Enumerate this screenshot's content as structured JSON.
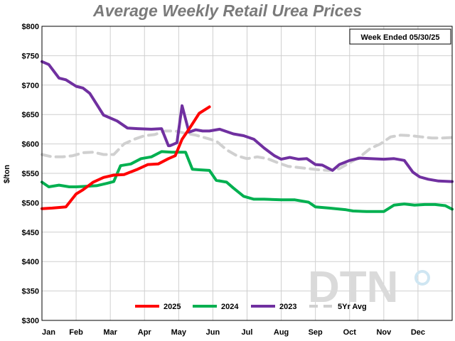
{
  "chart_data": {
    "type": "line",
    "title": "Average Weekly Retail Urea Prices",
    "annotation": "Week Ended 05/30/25",
    "ylabel": "$/ton",
    "ylim": [
      300,
      800
    ],
    "yticks": [
      300,
      350,
      400,
      450,
      500,
      550,
      600,
      650,
      700,
      750,
      800
    ],
    "ytick_labels": [
      "$300",
      "$350",
      "$400",
      "$450",
      "$500",
      "$550",
      "$600",
      "$650",
      "$700",
      "$750",
      "$800"
    ],
    "xlim": [
      0,
      12
    ],
    "months": [
      "Jan",
      "Feb",
      "Mar",
      "Apr",
      "May",
      "Jun",
      "Jul",
      "Aug",
      "Sep",
      "Oct",
      "Nov",
      "Dec"
    ],
    "grid": true,
    "legend_position": "bottom",
    "watermark": "DTN",
    "series": [
      {
        "name": "2023",
        "color": "#7030a0",
        "dash": false,
        "x": [
          0,
          0.2,
          0.5,
          0.7,
          1.0,
          1.2,
          1.4,
          1.8,
          2.2,
          2.5,
          2.8,
          3.2,
          3.5,
          3.7,
          3.75,
          3.95,
          4.1,
          4.3,
          4.5,
          4.7,
          4.9,
          5.2,
          5.6,
          5.9,
          6.2,
          6.5,
          6.8,
          7.0,
          7.25,
          7.5,
          7.75,
          8.0,
          8.2,
          8.5,
          8.7,
          9.0,
          9.3,
          9.6,
          10.0,
          10.3,
          10.6,
          10.85,
          11.05,
          11.3,
          11.6,
          12.0
        ],
        "y": [
          740,
          735,
          712,
          709,
          698,
          695,
          686,
          649,
          639,
          627,
          626,
          625,
          626,
          597,
          597,
          602,
          665,
          620,
          624,
          622,
          622,
          625,
          617,
          614,
          608,
          593,
          580,
          574,
          577,
          574,
          575,
          565,
          564,
          555,
          565,
          572,
          576,
          575,
          574,
          575,
          572,
          552,
          544,
          540,
          537,
          536
        ]
      },
      {
        "name": "2024",
        "color": "#00b050",
        "dash": false,
        "x": [
          0,
          0.2,
          0.5,
          0.8,
          1.0,
          1.3,
          1.6,
          1.9,
          2.1,
          2.3,
          2.6,
          2.9,
          3.2,
          3.5,
          3.8,
          4.0,
          4.2,
          4.4,
          4.6,
          4.9,
          5.1,
          5.4,
          5.6,
          5.9,
          6.2,
          6.5,
          7.0,
          7.4,
          7.8,
          8.0,
          8.4,
          8.9,
          9.1,
          9.5,
          10.0,
          10.3,
          10.6,
          10.9,
          11.2,
          11.5,
          11.8,
          12.0
        ],
        "y": [
          535,
          527,
          530,
          527,
          527,
          528,
          529,
          533,
          536,
          563,
          566,
          575,
          578,
          587,
          586,
          586,
          586,
          557,
          556,
          555,
          538,
          535,
          525,
          511,
          506,
          506,
          505,
          505,
          501,
          493,
          491,
          488,
          486,
          485,
          485,
          496,
          498,
          496,
          497,
          497,
          495,
          489
        ]
      },
      {
        "name": "2025",
        "color": "#ff0000",
        "dash": false,
        "x": [
          0,
          0.3,
          0.7,
          1.0,
          1.2,
          1.5,
          1.8,
          2.1,
          2.4,
          2.8,
          3.1,
          3.4,
          3.7,
          3.9,
          4.1,
          4.3,
          4.6,
          4.9
        ],
        "y": [
          490,
          491,
          493,
          515,
          522,
          535,
          543,
          547,
          548,
          557,
          565,
          566,
          575,
          580,
          608,
          625,
          652,
          663
        ]
      },
      {
        "name": "5Yr Avg",
        "color": "#d0d0d0",
        "dash": true,
        "x": [
          0,
          0.3,
          0.6,
          0.9,
          1.2,
          1.5,
          1.8,
          2.1,
          2.4,
          2.7,
          3.0,
          3.3,
          3.6,
          3.9,
          4.2,
          4.5,
          4.8,
          5.1,
          5.4,
          5.7,
          6.0,
          6.3,
          6.6,
          6.9,
          7.2,
          7.5,
          7.8,
          8.1,
          8.4,
          8.7,
          9.0,
          9.3,
          9.6,
          9.9,
          10.2,
          10.5,
          10.8,
          11.1,
          11.4,
          11.7,
          12.0
        ],
        "y": [
          582,
          578,
          578,
          580,
          585,
          586,
          582,
          582,
          600,
          608,
          614,
          616,
          622,
          622,
          618,
          615,
          610,
          605,
          590,
          580,
          575,
          578,
          575,
          568,
          562,
          560,
          558,
          556,
          555,
          558,
          568,
          578,
          592,
          600,
          612,
          615,
          614,
          612,
          610,
          610,
          611
        ]
      }
    ]
  }
}
